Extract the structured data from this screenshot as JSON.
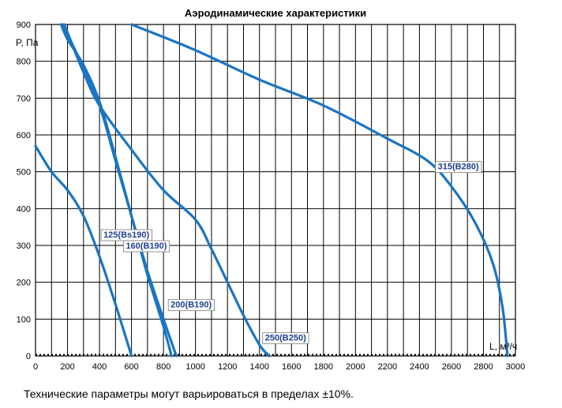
{
  "chart_data": {
    "type": "line",
    "title": "Аэродинамические характеристики",
    "ylabel": "P, Па",
    "xlabel": "L, м³/ч",
    "xlim": [
      0,
      3000
    ],
    "ylim": [
      0,
      900
    ],
    "x_ticks": [
      "0",
      "200",
      "400",
      "600",
      "800",
      "1000",
      "1200",
      "1400",
      "1600",
      "1800",
      "2000",
      "2200",
      "2400",
      "2600",
      "2800",
      "3000"
    ],
    "y_ticks": [
      "0",
      "100",
      "200",
      "300",
      "400",
      "500",
      "600",
      "700",
      "800",
      "900"
    ],
    "grid": true,
    "line_color": "#1a75c2",
    "series": [
      {
        "name": "125(Bs190)",
        "label_anchor": [
          400,
          330
        ],
        "points": [
          [
            0,
            570
          ],
          [
            100,
            500
          ],
          [
            200,
            450
          ],
          [
            300,
            380
          ],
          [
            400,
            270
          ],
          [
            500,
            140
          ],
          [
            600,
            0
          ]
        ]
      },
      {
        "name": "160(B190)",
        "label_anchor": [
          540,
          300
        ],
        "points": [
          [
            160,
            900
          ],
          [
            200,
            860
          ],
          [
            300,
            790
          ],
          [
            400,
            690
          ],
          [
            500,
            540
          ],
          [
            600,
            380
          ],
          [
            700,
            220
          ],
          [
            800,
            80
          ],
          [
            850,
            0
          ]
        ]
      },
      {
        "name": "200(B190)",
        "label_anchor": [
          820,
          140
        ],
        "points": [
          [
            170,
            900
          ],
          [
            280,
            800
          ],
          [
            400,
            680
          ],
          [
            500,
            530
          ],
          [
            600,
            380
          ],
          [
            700,
            230
          ],
          [
            800,
            100
          ],
          [
            880,
            0
          ]
        ]
      },
      {
        "name": "250(B250)",
        "label_anchor": [
          1410,
          50
        ],
        "points": [
          [
            180,
            900
          ],
          [
            300,
            770
          ],
          [
            400,
            680
          ],
          [
            600,
            560
          ],
          [
            800,
            450
          ],
          [
            1000,
            370
          ],
          [
            1100,
            290
          ],
          [
            1200,
            200
          ],
          [
            1300,
            110
          ],
          [
            1400,
            30
          ],
          [
            1460,
            0
          ]
        ]
      },
      {
        "name": "315(B280)",
        "label_anchor": [
          2490,
          515
        ],
        "points": [
          [
            600,
            900
          ],
          [
            1000,
            830
          ],
          [
            1400,
            750
          ],
          [
            1800,
            680
          ],
          [
            2200,
            590
          ],
          [
            2450,
            530
          ],
          [
            2600,
            460
          ],
          [
            2750,
            360
          ],
          [
            2860,
            250
          ],
          [
            2920,
            130
          ],
          [
            2950,
            0
          ]
        ]
      }
    ]
  },
  "footnote": "Технические параметры могут варьироваться в пределах ±10%."
}
